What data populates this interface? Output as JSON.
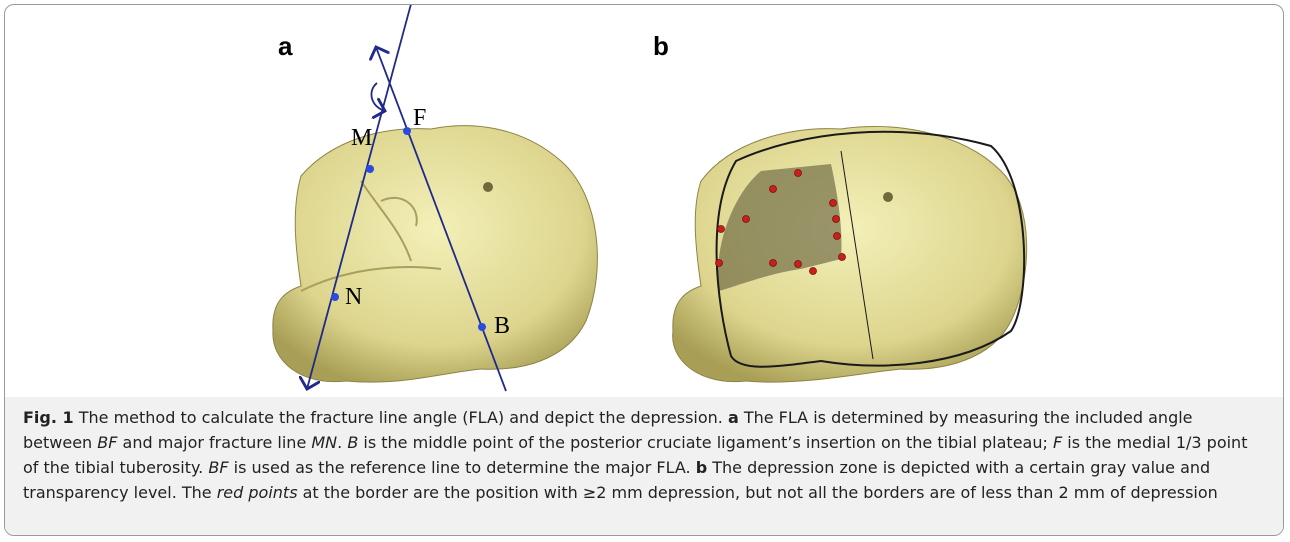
{
  "figure": {
    "panels": [
      {
        "label": "a",
        "points": [
          "M",
          "F",
          "N",
          "B"
        ]
      },
      {
        "label": "b"
      }
    ],
    "caption": {
      "runs": [
        {
          "text": "Fig. 1",
          "style": "bold"
        },
        {
          "text": " The method to calculate the fracture line angle (FLA) and depict the depression. "
        },
        {
          "text": "a",
          "style": "bold"
        },
        {
          "text": " The FLA is determined by measuring the included angle between "
        },
        {
          "text": "BF",
          "style": "italic"
        },
        {
          "text": " and major fracture line "
        },
        {
          "text": "MN",
          "style": "italic"
        },
        {
          "text": ". "
        },
        {
          "text": "B",
          "style": "italic"
        },
        {
          "text": " is the middle point of the posterior cruciate ligament’s insertion on the tibial plateau; "
        },
        {
          "text": "F",
          "style": "italic"
        },
        {
          "text": " is the medial 1/3 point of the tibial tuberosity. "
        },
        {
          "text": "BF",
          "style": "italic"
        },
        {
          "text": " is used as the reference line to determine the major FLA. "
        },
        {
          "text": "b",
          "style": "bold"
        },
        {
          "text": " The depression zone is depicted with a certain gray value and transparency level. The "
        },
        {
          "text": "red points",
          "style": "italic"
        },
        {
          "text": " at the border are the position with ≥2 mm depression, but not all the borders are of less than 2 mm of depression"
        }
      ]
    }
  }
}
